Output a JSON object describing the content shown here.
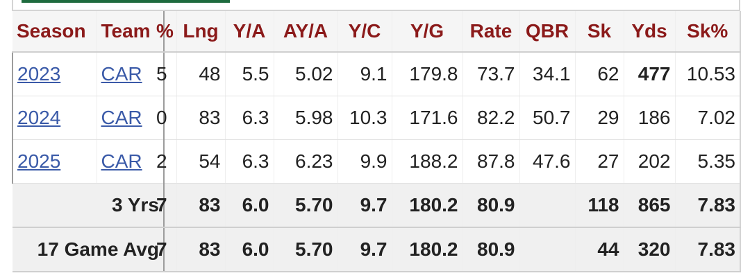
{
  "header": {
    "columns": [
      "Season",
      "Team",
      "%",
      "Lng",
      "Y/A",
      "AY/A",
      "Y/C",
      "Y/G",
      "Rate",
      "QBR",
      "Sk",
      "Yds",
      "Sk%"
    ]
  },
  "rows": [
    {
      "season": "2023",
      "team": "CAR",
      "clip": "5",
      "lng": "48",
      "ya": "5.5",
      "aya": "5.02",
      "yc": "9.1",
      "yg": "179.8",
      "rate": "73.7",
      "qbr": "34.1",
      "sk": "62",
      "yds": "477",
      "skp": "10.53"
    },
    {
      "season": "2024",
      "team": "CAR",
      "clip": "0",
      "lng": "83",
      "ya": "6.3",
      "aya": "5.98",
      "yc": "10.3",
      "yg": "171.6",
      "rate": "82.2",
      "qbr": "50.7",
      "sk": "29",
      "yds": "186",
      "skp": "7.02"
    },
    {
      "season": "2025",
      "team": "CAR",
      "clip": "2",
      "lng": "54",
      "ya": "6.3",
      "aya": "6.23",
      "yc": "9.9",
      "yg": "188.2",
      "rate": "87.8",
      "qbr": "47.6",
      "sk": "27",
      "yds": "202",
      "skp": "5.35"
    }
  ],
  "totals": [
    {
      "label": "3 Yrs",
      "clip": "7",
      "lng": "83",
      "ya": "6.0",
      "aya": "5.70",
      "yc": "9.7",
      "yg": "180.2",
      "rate": "80.9",
      "qbr": "",
      "sk": "118",
      "yds": "865",
      "skp": "7.83"
    },
    {
      "label": "17 Game Avg",
      "clip": "7",
      "lng": "83",
      "ya": "6.0",
      "aya": "5.70",
      "yc": "9.7",
      "yg": "180.2",
      "rate": "80.9",
      "qbr": "",
      "sk": "44",
      "yds": "320",
      "skp": "7.83"
    }
  ],
  "colors": {
    "header_text": "#8b1a1a",
    "link": "#3a5aa8",
    "tab_accent": "#1e6b3e"
  }
}
